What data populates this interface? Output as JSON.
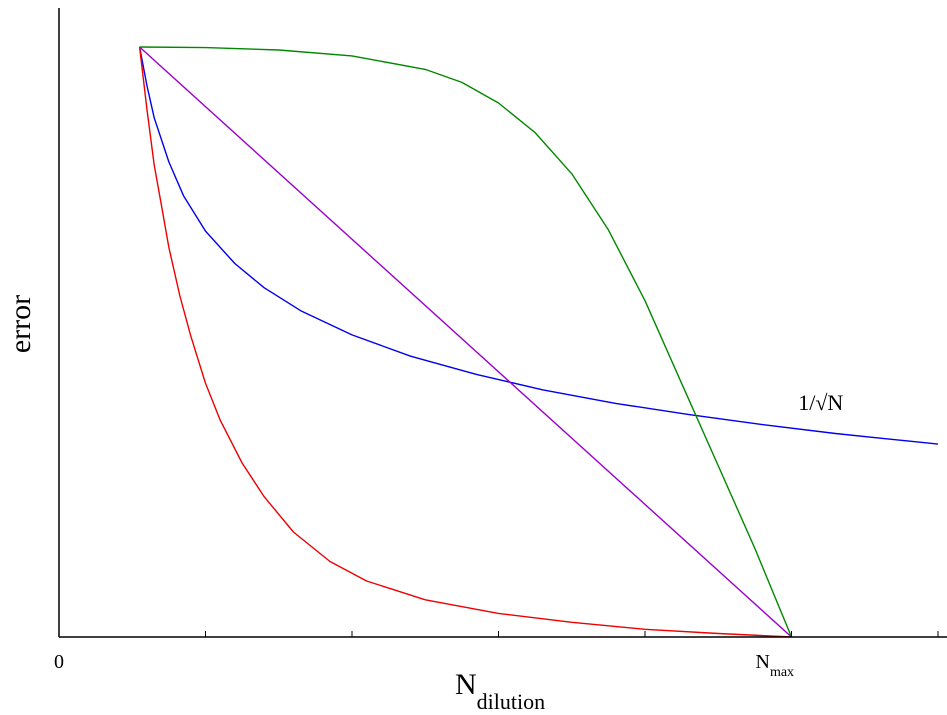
{
  "chart_data": {
    "type": "line",
    "ylabel": "error",
    "xlabel": {
      "main": "N",
      "sub": "dilution"
    },
    "x_tick_labels": [
      {
        "value": 0,
        "main": "0",
        "sub": ""
      },
      {
        "value": 100,
        "main": "N",
        "sub": "max"
      }
    ],
    "xlim": [
      0,
      120
    ],
    "ylim": [
      0,
      1.0
    ],
    "x_minor_ticks": [
      0,
      20,
      40,
      60,
      80,
      100,
      120
    ],
    "annotations": [
      {
        "text": "1/√N",
        "x": 104,
        "y": 0.385
      }
    ],
    "series": [
      {
        "color": "#0000ee",
        "x": [
          11,
          12,
          13,
          15,
          17,
          20,
          24,
          28,
          33,
          40,
          48,
          57,
          66,
          76,
          86,
          96,
          106,
          116,
          120
        ],
        "y": [
          1.0,
          0.935,
          0.88,
          0.805,
          0.748,
          0.688,
          0.633,
          0.592,
          0.553,
          0.512,
          0.476,
          0.445,
          0.419,
          0.396,
          0.377,
          0.36,
          0.345,
          0.332,
          0.327
        ]
      },
      {
        "color": "#ee0000",
        "x": [
          11,
          12,
          13,
          14,
          15,
          16.5,
          18,
          20,
          22,
          25,
          28,
          32,
          37,
          42,
          50,
          60,
          70,
          80,
          90,
          100
        ],
        "y": [
          1.0,
          0.895,
          0.8,
          0.73,
          0.66,
          0.578,
          0.51,
          0.43,
          0.368,
          0.295,
          0.238,
          0.178,
          0.128,
          0.095,
          0.063,
          0.04,
          0.025,
          0.013,
          0.006,
          0.0
        ]
      },
      {
        "color": "#9900cc",
        "x": [
          11,
          100
        ],
        "y": [
          1.0,
          0.0
        ]
      },
      {
        "color": "#008800",
        "x": [
          11,
          20,
          30,
          40,
          50,
          55,
          60,
          65,
          70,
          75,
          80,
          85,
          90,
          95,
          100
        ],
        "y": [
          1.0,
          0.999,
          0.995,
          0.985,
          0.962,
          0.94,
          0.905,
          0.855,
          0.785,
          0.69,
          0.57,
          0.43,
          0.29,
          0.15,
          0.0
        ]
      }
    ]
  }
}
